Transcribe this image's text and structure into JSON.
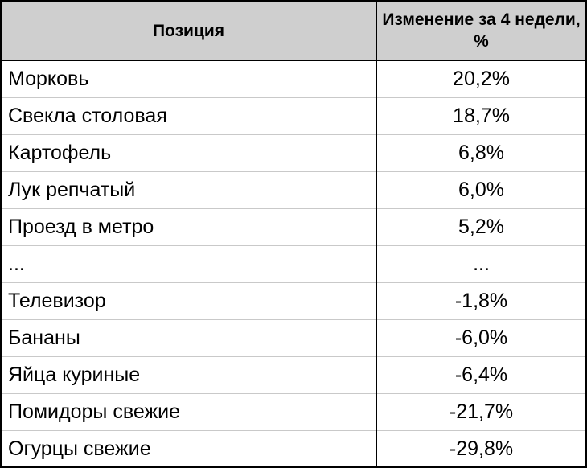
{
  "chart_data": {
    "type": "table",
    "columns": [
      "Позиция",
      "Изменение за 4 недели, %"
    ],
    "rows": [
      [
        "Морковь",
        "20,2%"
      ],
      [
        "Свекла столовая",
        "18,7%"
      ],
      [
        "Картофель",
        "6,8%"
      ],
      [
        "Лук репчатый",
        "6,0%"
      ],
      [
        "Проезд в метро",
        "5,2%"
      ],
      [
        "...",
        "..."
      ],
      [
        "Телевизор",
        "-1,8%"
      ],
      [
        "Бананы",
        "-6,0%"
      ],
      [
        "Яйца куриные",
        "-6,4%"
      ],
      [
        "Помидоры свежие",
        "-21,7%"
      ],
      [
        "Огурцы свежие",
        "-29,8%"
      ]
    ]
  },
  "colors": {
    "header_background": "#cfcfcf",
    "border": "#000000",
    "row_separator": "#c9c9c9"
  }
}
